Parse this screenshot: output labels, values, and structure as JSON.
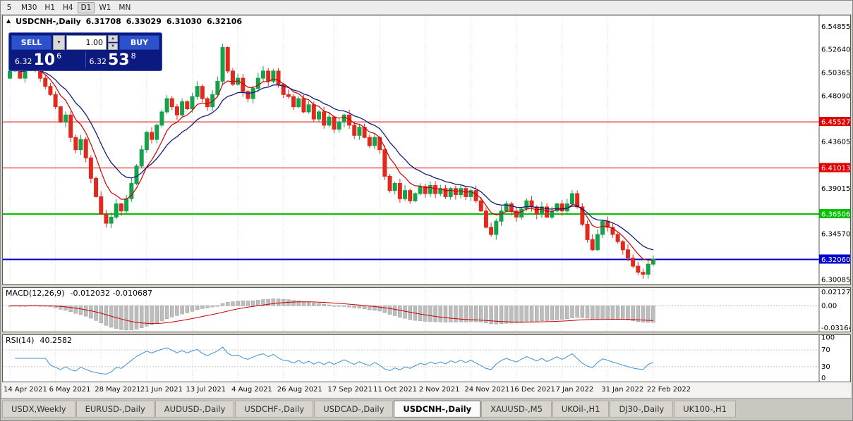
{
  "toolbar": {
    "timeframes": [
      "5",
      "M30",
      "H1",
      "H4",
      "D1",
      "W1",
      "MN"
    ],
    "active": "D1"
  },
  "symbol_header": {
    "marker": "▲",
    "symbol": "USDCNH-,Daily",
    "open": "6.31708",
    "high": "6.33029",
    "low": "6.31030",
    "close": "6.32106"
  },
  "trade_panel": {
    "sell_label": "SELL",
    "buy_label": "BUY",
    "volume": "1.00",
    "sell_price_prefix": "6.32",
    "sell_price_big": "10",
    "sell_price_sup": "6",
    "buy_price_prefix": "6.32",
    "buy_price_big": "53",
    "buy_price_sup": "8"
  },
  "chart_data": {
    "type": "candlestick",
    "symbol": "USDCNH-",
    "timeframe": "Daily",
    "x_dates": [
      "14 Apr 2021",
      "6 May 2021",
      "28 May 2021",
      "21 Jun 2021",
      "13 Jul 2021",
      "4 Aug 2021",
      "26 Aug 2021",
      "17 Sep 2021",
      "11 Oct 2021",
      "2 Nov 2021",
      "24 Nov 2021",
      "16 Dec 2021",
      "7 Jan 2022",
      "31 Jan 2022",
      "22 Feb 2022"
    ],
    "first_open": 6.498,
    "closes": [
      6.505,
      6.512,
      6.498,
      6.506,
      6.515,
      6.508,
      6.498,
      6.49,
      6.482,
      6.47,
      6.455,
      6.462,
      6.44,
      6.428,
      6.438,
      6.42,
      6.4,
      6.382,
      6.365,
      6.356,
      6.362,
      6.375,
      6.368,
      6.38,
      6.395,
      6.412,
      6.428,
      6.445,
      6.438,
      6.452,
      6.465,
      6.478,
      6.47,
      6.462,
      6.475,
      6.468,
      6.48,
      6.49,
      6.478,
      6.47,
      6.482,
      6.495,
      6.528,
      6.505,
      6.492,
      6.498,
      6.485,
      6.478,
      6.488,
      6.498,
      6.505,
      6.495,
      6.505,
      6.492,
      6.482,
      6.48,
      6.47,
      6.478,
      6.465,
      6.472,
      6.458,
      6.465,
      6.452,
      6.46,
      6.448,
      6.455,
      6.462,
      6.452,
      6.442,
      6.45,
      6.44,
      6.432,
      6.44,
      6.428,
      6.402,
      6.388,
      6.395,
      6.38,
      6.388,
      6.378,
      6.385,
      6.392,
      6.385,
      6.393,
      6.385,
      6.39,
      6.382,
      6.39,
      6.384,
      6.39,
      6.382,
      6.388,
      6.378,
      6.368,
      6.352,
      6.345,
      6.358,
      6.368,
      6.375,
      6.368,
      6.362,
      6.37,
      6.378,
      6.372,
      6.365,
      6.372,
      6.362,
      6.368,
      6.375,
      6.368,
      6.375,
      6.385,
      6.372,
      6.355,
      6.34,
      6.33,
      6.345,
      6.358,
      6.352,
      6.345,
      6.338,
      6.33,
      6.322,
      6.314,
      6.308,
      6.306,
      6.316,
      6.321
    ],
    "price_domain": [
      6.2975,
      6.558
    ],
    "price_axis_ticks": [
      "6.54855",
      "6.52640",
      "6.50365",
      "6.48090",
      "6.43605",
      "6.39015",
      "6.34570",
      "6.30085"
    ],
    "hlines": [
      {
        "price": 6.45527,
        "label": "6.45527",
        "color": "#e00000",
        "width": 1
      },
      {
        "price": 6.41013,
        "label": "6.41013",
        "color": "#e00000",
        "width": 1
      },
      {
        "price": 6.36506,
        "label": "6.36506",
        "color": "#00c000",
        "width": 2
      },
      {
        "price": 6.3206,
        "label": "6.32060",
        "color": "#0000d0",
        "width": 2
      }
    ],
    "colors": {
      "up": "#16a24c",
      "down": "#e02a1e",
      "grid": "#d9d9d9",
      "ma_fast": "#cc0000",
      "ma_slow": "#121c7a"
    },
    "indicators": {
      "macd": {
        "label": "MACD(12,26,9)",
        "values_text": "-0.012032 -0.010687",
        "axis": [
          "0.021276",
          "0.00",
          "-0.031641"
        ],
        "domain": [
          -0.0345,
          0.0235
        ],
        "hist_color": "#bdbdbd",
        "signal_color": "#cc0000"
      },
      "rsi": {
        "label": "RSI(14)",
        "value_text": "40.2582",
        "axis": [
          "100",
          "70",
          "30",
          "0"
        ],
        "levels": [
          70,
          30
        ],
        "color": "#3f8fd4"
      }
    }
  },
  "tabs": {
    "active_index": 5,
    "items": [
      "USDX,Weekly",
      "EURUSD-,Daily",
      "AUDUSD-,Daily",
      "USDCHF-,Daily",
      "USDCAD-,Daily",
      "USDCNH-,Daily",
      "XAUUSD-,M5",
      "UKOil-,H1",
      "DJ30-,Daily",
      "UK100-,H1"
    ]
  }
}
